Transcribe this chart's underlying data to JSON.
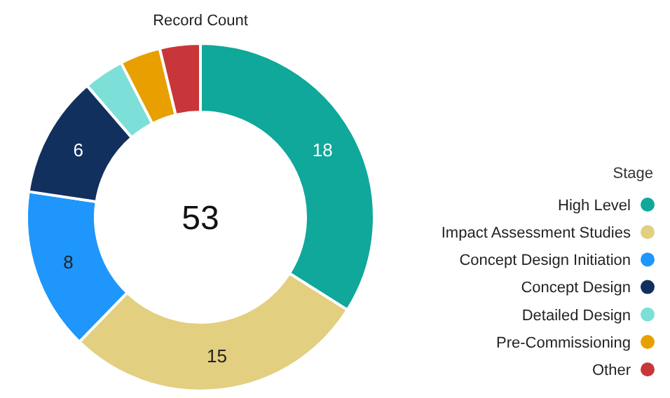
{
  "chart_data": {
    "type": "donut",
    "title": "Record Count",
    "legend_title": "Stage",
    "legend": "right",
    "categories": [
      "High Level",
      "Impact Assessment Studies",
      "Concept Design Initiation",
      "Concept Design",
      "Detailed Design",
      "Pre-Commissioning",
      "Other"
    ],
    "values": [
      18,
      15,
      8,
      6,
      2,
      2,
      2
    ],
    "colors": [
      "#0fa89a",
      "#e2cf80",
      "#1e96fc",
      "#12305e",
      "#7cdfd8",
      "#e8a000",
      "#c8363a"
    ],
    "value_labels": [
      "18",
      "15",
      "8",
      "6",
      null,
      null,
      null
    ],
    "annotations": [
      "53"
    ]
  }
}
